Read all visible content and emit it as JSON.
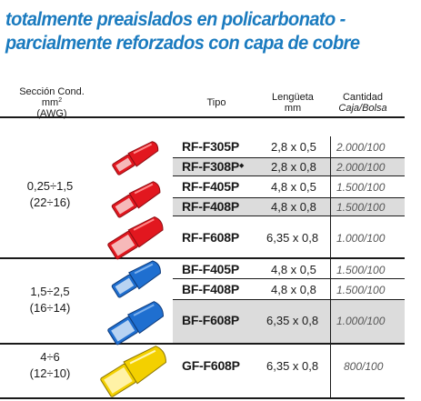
{
  "title": {
    "line1": "totalmente preaislados en policarbonato -",
    "line2": "parcialmente reforzados con capa de cobre"
  },
  "headers": {
    "seccion_line1": "Sección Cond.",
    "seccion_line2": "mm",
    "seccion_sup": "2",
    "seccion_line3": "(AWG)",
    "tipo": "Tipo",
    "lengueta_line1": "Lengüeta",
    "lengueta_line2": "mm",
    "cantidad_line1": "Cantidad",
    "cantidad_line2": "Caja/Bolsa"
  },
  "groups": [
    {
      "section": "0,25÷1,5",
      "awg": "(22÷16)",
      "color": "#e2171f"
    },
    {
      "section": "1,5÷2,5",
      "awg": "(16÷14)",
      "color": "#1f6fd0"
    },
    {
      "section": "4÷6",
      "awg": "(12÷10)",
      "color": "#f3d000"
    }
  ],
  "rows": [
    {
      "tipo": "RF-F305P",
      "mark": "",
      "lengueta": "2,8 x 0,5",
      "cantidad": "2.000/100"
    },
    {
      "tipo": "RF-F308P",
      "mark": "◆",
      "lengueta": "2,8 x 0,8",
      "cantidad": "2.000/100"
    },
    {
      "tipo": "RF-F405P",
      "mark": "",
      "lengueta": "4,8 x 0,5",
      "cantidad": "1.500/100"
    },
    {
      "tipo": "RF-F408P",
      "mark": "",
      "lengueta": "4,8 x 0,8",
      "cantidad": "1.500/100"
    },
    {
      "tipo": "RF-F608P",
      "mark": "",
      "lengueta": "6,35 x 0,8",
      "cantidad": "1.000/100"
    },
    {
      "tipo": "BF-F405P",
      "mark": "",
      "lengueta": "4,8 x 0,5",
      "cantidad": "1.500/100"
    },
    {
      "tipo": "BF-F408P",
      "mark": "",
      "lengueta": "4,8 x 0,8",
      "cantidad": "1.500/100"
    },
    {
      "tipo": "BF-F608P",
      "mark": "",
      "lengueta": "6,35 x 0,8",
      "cantidad": "1.000/100"
    },
    {
      "tipo": "GF-F608P",
      "mark": "",
      "lengueta": "6,35 x 0,8",
      "cantidad": "800/100"
    }
  ]
}
